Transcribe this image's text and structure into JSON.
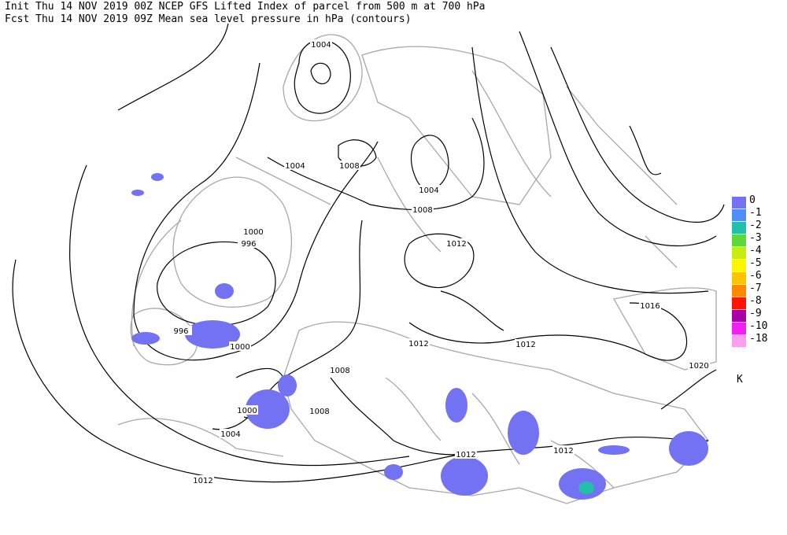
{
  "header": {
    "lines": [
      "Init  Thu 14 NOV 2019 00Z  NCEP GFS Lifted Index of parcel from 500 m at 700 hPa",
      "Fcst Thu 14 NOV 2019 09Z  Mean sea level pressure in hPa (contours)"
    ]
  },
  "legend": {
    "items": [
      {
        "label": "0",
        "color": "#7272f2"
      },
      {
        "label": "-1",
        "color": "#4f8ff5"
      },
      {
        "label": "-2",
        "color": "#22c0a8"
      },
      {
        "label": "-3",
        "color": "#5cd83a"
      },
      {
        "label": "-4",
        "color": "#c6ec10"
      },
      {
        "label": "-5",
        "color": "#fbf600"
      },
      {
        "label": "-6",
        "color": "#ffc400"
      },
      {
        "label": "-7",
        "color": "#ff8a00"
      },
      {
        "label": "-8",
        "color": "#ff1400"
      },
      {
        "label": "-9",
        "color": "#a800a8"
      },
      {
        "label": "-10",
        "color": "#f020f0"
      },
      {
        "label": "-18",
        "color": "#f8a0f0"
      }
    ],
    "unit": "K"
  },
  "contour_labels": [
    "1004",
    "1008",
    "1004",
    "1004",
    "1008",
    "1000",
    "996",
    "996",
    "1000",
    "1012",
    "1016",
    "1012",
    "1012",
    "1008",
    "1008",
    "1000",
    "1004",
    "1012",
    "1012",
    "1012",
    "1020"
  ]
}
